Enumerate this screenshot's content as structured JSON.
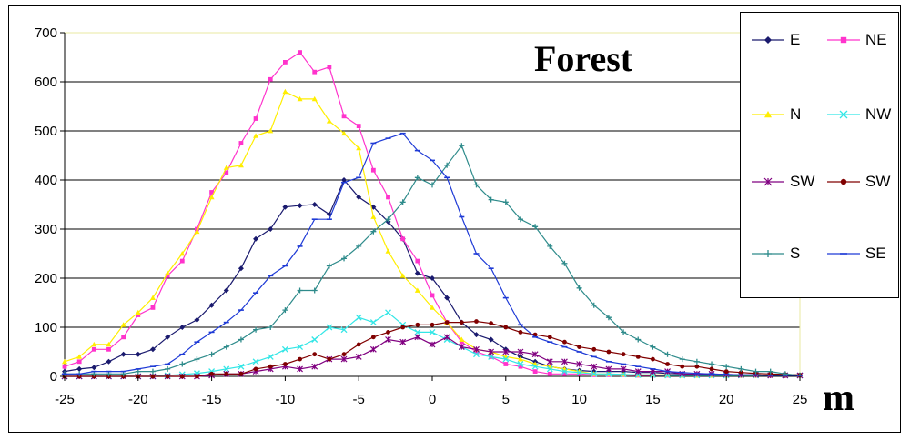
{
  "chart_data": {
    "type": "line",
    "title": "Forest",
    "xlabel": "m",
    "ylabel": "",
    "xlim": [
      -25,
      25
    ],
    "ylim": [
      0,
      700
    ],
    "x_ticks": [
      -25,
      -20,
      -15,
      -10,
      -5,
      0,
      5,
      10,
      15,
      20,
      25
    ],
    "y_ticks": [
      0,
      100,
      200,
      300,
      400,
      500,
      600,
      700
    ],
    "grid": "horizontal",
    "legend_position": "right",
    "x": [
      -25,
      -24,
      -23,
      -22,
      -21,
      -20,
      -19,
      -18,
      -17,
      -16,
      -15,
      -14,
      -13,
      -12,
      -11,
      -10,
      -9,
      -8,
      -7,
      -6,
      -5,
      -4,
      -3,
      -2,
      -1,
      0,
      1,
      2,
      3,
      4,
      5,
      6,
      7,
      8,
      9,
      10,
      11,
      12,
      13,
      14,
      15,
      16,
      17,
      18,
      19,
      20,
      21,
      22,
      23,
      24,
      25
    ],
    "series": [
      {
        "name": "E",
        "color": "#1a1a6e",
        "marker": "diamond",
        "values": [
          10,
          15,
          18,
          30,
          45,
          45,
          55,
          80,
          100,
          115,
          145,
          175,
          220,
          280,
          300,
          345,
          348,
          350,
          330,
          400,
          365,
          345,
          315,
          280,
          210,
          200,
          160,
          110,
          85,
          75,
          55,
          40,
          30,
          20,
          15,
          12,
          10,
          10,
          10,
          8,
          8,
          6,
          5,
          4,
          4,
          3,
          3,
          3,
          2,
          2,
          2
        ]
      },
      {
        "name": "NE",
        "color": "#ff33cc",
        "marker": "square",
        "values": [
          20,
          30,
          55,
          55,
          80,
          125,
          140,
          205,
          235,
          300,
          375,
          415,
          475,
          525,
          605,
          640,
          660,
          620,
          630,
          530,
          510,
          420,
          365,
          280,
          235,
          165,
          110,
          70,
          50,
          40,
          25,
          20,
          10,
          5,
          5,
          5,
          3,
          3,
          3,
          2,
          2,
          2,
          2,
          2,
          2,
          2,
          2,
          2,
          2,
          2,
          2
        ]
      },
      {
        "name": "N",
        "color": "#ffee00",
        "marker": "triangle",
        "values": [
          30,
          40,
          65,
          65,
          105,
          130,
          160,
          210,
          250,
          295,
          365,
          425,
          430,
          490,
          500,
          580,
          565,
          565,
          520,
          495,
          465,
          325,
          255,
          205,
          175,
          140,
          110,
          75,
          55,
          50,
          40,
          35,
          25,
          20,
          15,
          10,
          5,
          5,
          4,
          3,
          3,
          3,
          2,
          2,
          2,
          2,
          2,
          2,
          2,
          2,
          2
        ]
      },
      {
        "name": "NW",
        "color": "#33e6e6",
        "marker": "x",
        "values": [
          0,
          0,
          0,
          0,
          0,
          0,
          0,
          2,
          4,
          6,
          10,
          15,
          20,
          30,
          40,
          55,
          60,
          75,
          100,
          95,
          120,
          110,
          130,
          105,
          90,
          90,
          75,
          60,
          45,
          40,
          35,
          25,
          20,
          15,
          10,
          8,
          5,
          5,
          4,
          3,
          3,
          2,
          2,
          2,
          2,
          2,
          2,
          2,
          2,
          2,
          2
        ]
      },
      {
        "name": "SW",
        "color": "#800080",
        "marker": "star",
        "values": [
          0,
          0,
          0,
          0,
          0,
          0,
          0,
          0,
          0,
          0,
          2,
          5,
          5,
          10,
          15,
          20,
          15,
          20,
          35,
          35,
          40,
          55,
          75,
          70,
          80,
          65,
          80,
          60,
          55,
          50,
          50,
          50,
          45,
          30,
          30,
          25,
          20,
          15,
          15,
          10,
          10,
          10,
          5,
          5,
          5,
          4,
          3,
          3,
          2,
          2,
          2
        ]
      },
      {
        "name": "SW",
        "color": "#800000",
        "marker": "circle",
        "values": [
          0,
          0,
          0,
          0,
          0,
          0,
          0,
          0,
          0,
          0,
          5,
          5,
          5,
          15,
          20,
          25,
          35,
          45,
          35,
          45,
          65,
          80,
          90,
          100,
          105,
          105,
          110,
          110,
          112,
          108,
          100,
          90,
          85,
          80,
          70,
          60,
          55,
          50,
          45,
          40,
          35,
          25,
          20,
          20,
          15,
          10,
          8,
          6,
          5,
          4,
          3
        ]
      },
      {
        "name": "S",
        "color": "#2e8b8b",
        "marker": "plus",
        "values": [
          5,
          5,
          5,
          5,
          5,
          10,
          10,
          15,
          25,
          35,
          45,
          60,
          75,
          95,
          100,
          135,
          175,
          175,
          225,
          240,
          265,
          295,
          320,
          355,
          405,
          390,
          430,
          470,
          390,
          360,
          355,
          320,
          305,
          265,
          230,
          180,
          145,
          120,
          90,
          75,
          60,
          45,
          35,
          30,
          25,
          20,
          15,
          10,
          10,
          5,
          2
        ]
      },
      {
        "name": "SE",
        "color": "#1e3ad6",
        "marker": "dash",
        "values": [
          5,
          5,
          10,
          10,
          10,
          15,
          20,
          25,
          45,
          70,
          90,
          110,
          135,
          170,
          205,
          225,
          265,
          320,
          320,
          395,
          405,
          475,
          485,
          495,
          460,
          440,
          405,
          325,
          250,
          220,
          160,
          105,
          80,
          70,
          60,
          50,
          40,
          30,
          25,
          20,
          15,
          10,
          8,
          6,
          5,
          4,
          3,
          3,
          2,
          2,
          2
        ]
      }
    ]
  }
}
